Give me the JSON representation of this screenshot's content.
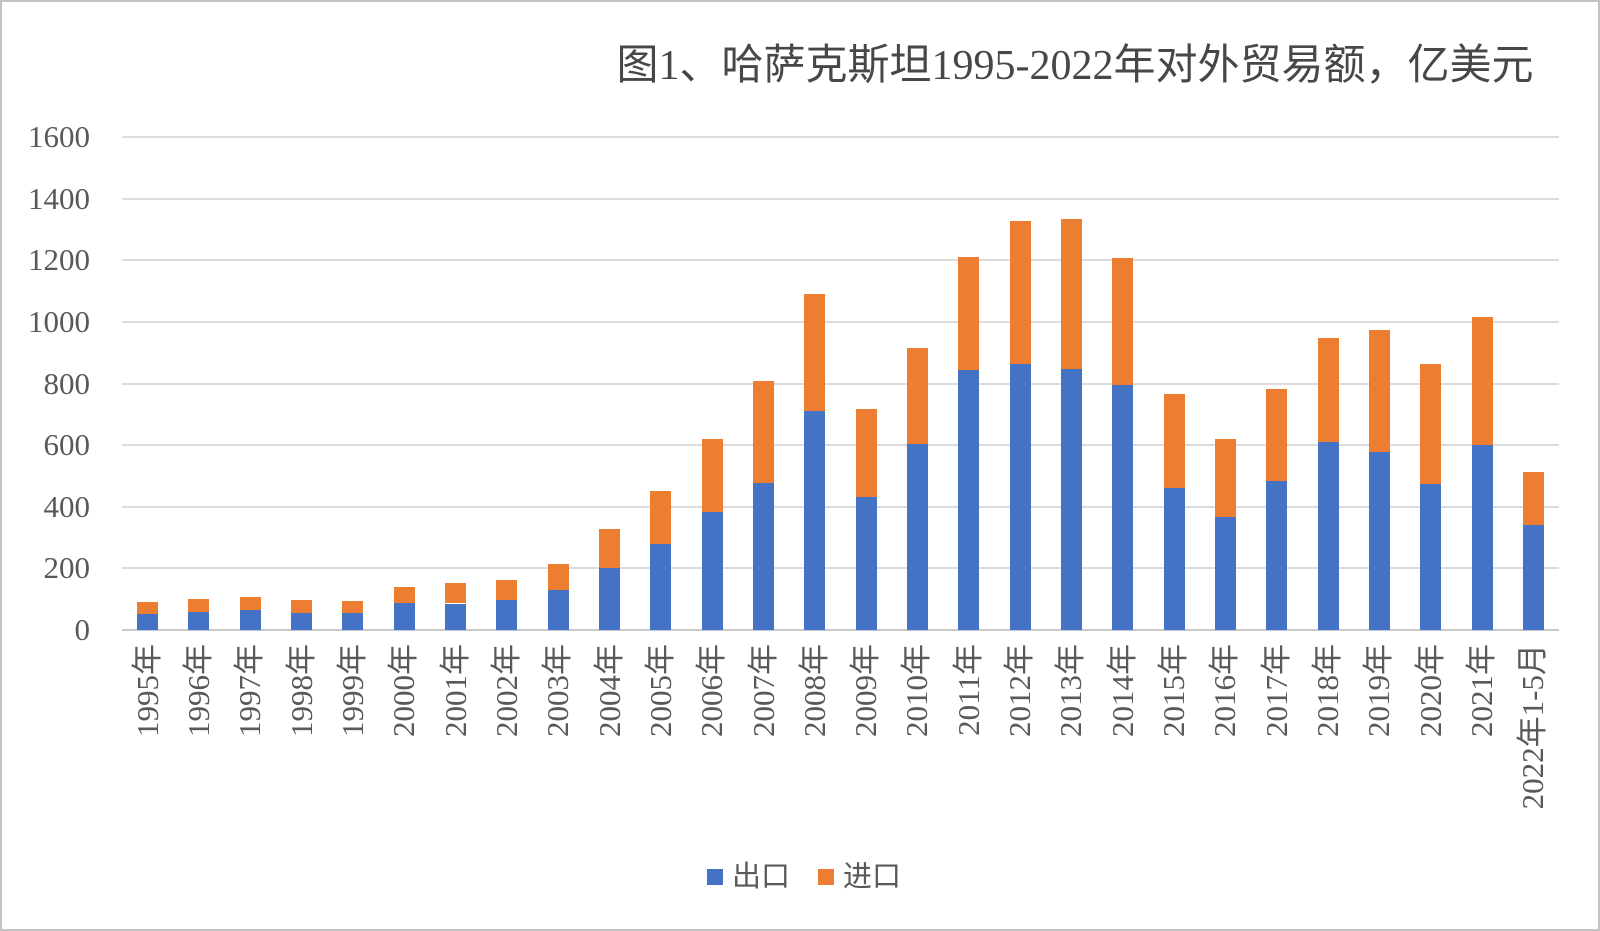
{
  "title": "图1、哈萨克斯坦1995-2022年对外贸易额，亿美元",
  "legend": {
    "export_label": "出口",
    "import_label": "进口"
  },
  "colors": {
    "export": "#4472C4",
    "import": "#ED7D31",
    "gridline": "#DCDCDC",
    "axis_text": "#595959",
    "title_text": "#474747"
  },
  "chart_data": {
    "type": "bar",
    "stacked": true,
    "title": "图1、哈萨克斯坦1995-2022年对外贸易额，亿美元",
    "unit": "亿美元",
    "categories": [
      "1995年",
      "1996年",
      "1997年",
      "1998年",
      "1999年",
      "2000年",
      "2001年",
      "2002年",
      "2003年",
      "2004年",
      "2005年",
      "2006年",
      "2007年",
      "2008年",
      "2009年",
      "2010年",
      "2011年",
      "2012年",
      "2013年",
      "2014年",
      "2015年",
      "2016年",
      "2017年",
      "2018年",
      "2019年",
      "2020年",
      "2021年",
      "2022年1-5月"
    ],
    "series": [
      {
        "name": "出口",
        "color": "#4472C4",
        "values": [
          52,
          59,
          65,
          54,
          56,
          88,
          86,
          97,
          129,
          201,
          278,
          383,
          478,
          712,
          432,
          603,
          843,
          864,
          847,
          795,
          460,
          368,
          485,
          611,
          577,
          475,
          602,
          342
        ]
      },
      {
        "name": "进口",
        "color": "#ED7D31",
        "values": [
          38,
          42,
          43,
          44,
          37,
          50,
          65,
          66,
          84,
          128,
          174,
          237,
          329,
          379,
          284,
          311,
          369,
          464,
          488,
          413,
          306,
          252,
          296,
          337,
          397,
          388,
          414,
          171
        ]
      }
    ],
    "totals": [
      90,
      101,
      108,
      98,
      93,
      138,
      151,
      163,
      213,
      329,
      452,
      620,
      807,
      1091,
      716,
      914,
      1212,
      1328,
      1335,
      1208,
      766,
      620,
      781,
      948,
      974,
      863,
      1016,
      513
    ],
    "ylim": [
      0,
      1600
    ],
    "yticks": [
      0,
      200,
      400,
      600,
      800,
      1000,
      1200,
      1400,
      1600
    ],
    "grid": true,
    "legend_position": "bottom",
    "x_label_rotation": -90
  }
}
